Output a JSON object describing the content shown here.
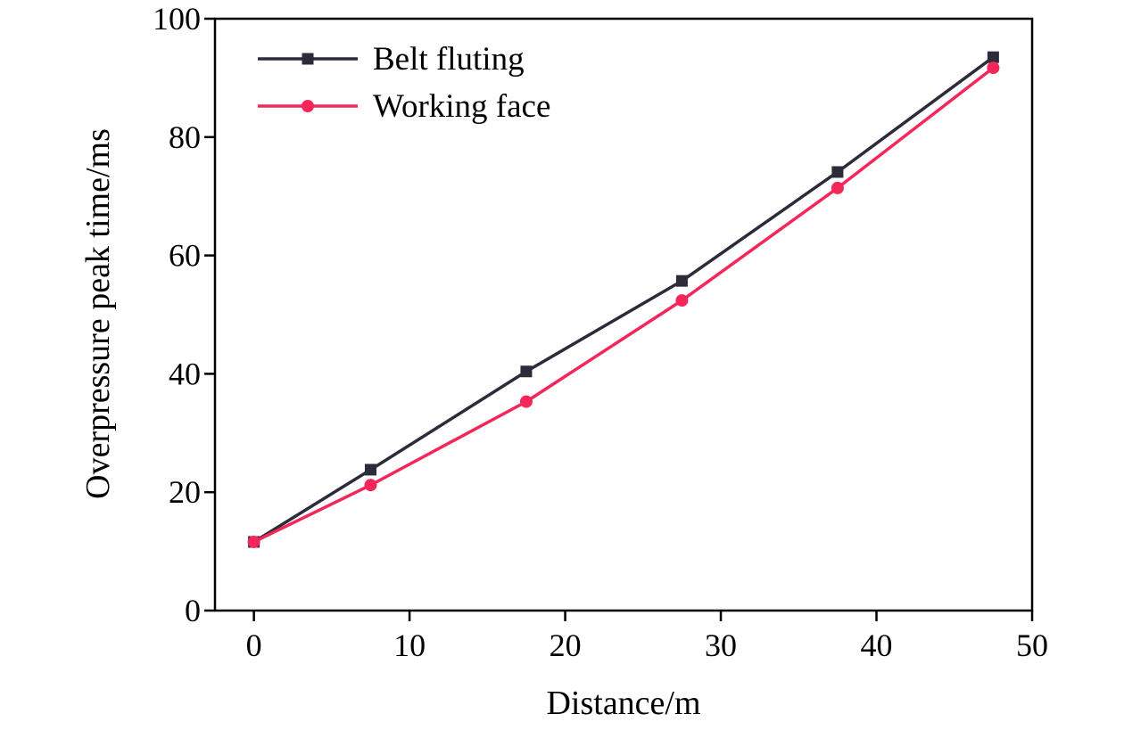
{
  "chart_data": {
    "type": "line",
    "title": "",
    "xlabel": "Distance/m",
    "ylabel": "Overpressure peak time/ms",
    "xlim": [
      -2.5,
      50
    ],
    "ylim": [
      0,
      100
    ],
    "x_ticks": [
      0,
      10,
      20,
      30,
      40,
      50
    ],
    "y_ticks": [
      0,
      20,
      40,
      60,
      80,
      100
    ],
    "grid": false,
    "legend_position": "top-left",
    "x": [
      0,
      7.5,
      17.5,
      27.5,
      37.5,
      47.5
    ],
    "series": [
      {
        "name": "Belt fluting",
        "values": [
          11.6,
          23.8,
          40.4,
          55.7,
          74.1,
          93.5
        ],
        "color": "#2b2b3a",
        "marker": "square"
      },
      {
        "name": "Working face",
        "values": [
          11.6,
          21.2,
          35.3,
          52.4,
          71.4,
          91.7
        ],
        "color": "#f4265a",
        "marker": "circle"
      }
    ]
  }
}
